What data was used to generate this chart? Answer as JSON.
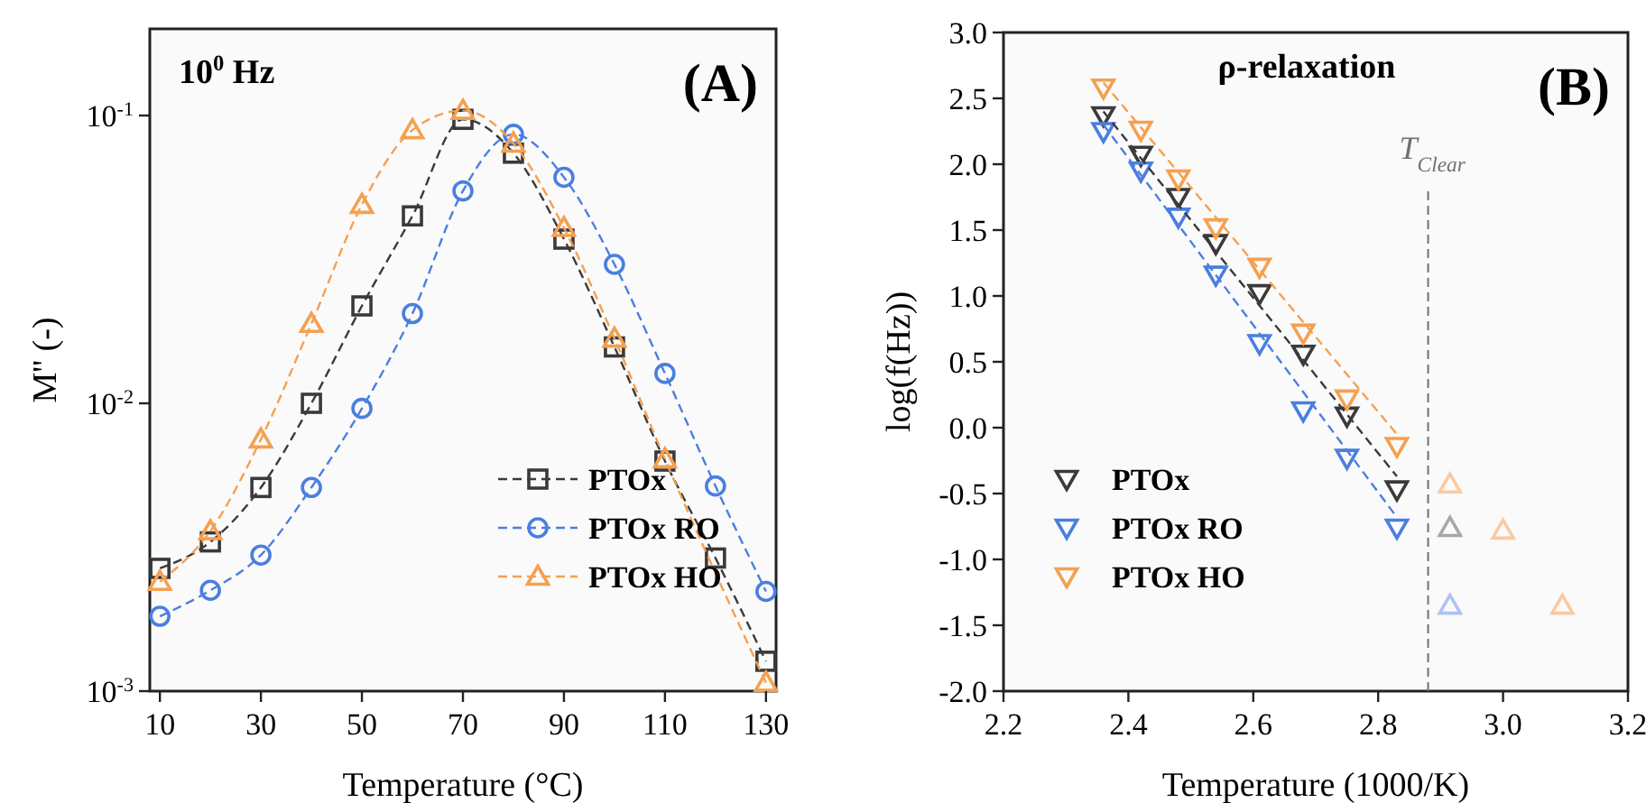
{
  "chart_data": [
    {
      "type": "line",
      "annotations": [
        "10$^{0}$ Hz",
        "(A)"
      ],
      "xlabel": "Temperature (°C)",
      "ylabel": "M'' (-)",
      "log": "y",
      "xlim": [
        8,
        132
      ],
      "xticks": [
        10,
        30,
        50,
        70,
        90,
        110,
        130
      ],
      "ylim": [
        0.001,
        0.2
      ],
      "yticks": [
        {
          "value": 0.001,
          "label": "10$^{-3}$"
        },
        {
          "value": 0.01,
          "label": "10$^{-2}$"
        },
        {
          "value": 0.1,
          "label": "10$^{-1}$"
        }
      ],
      "grid": false,
      "legend": "bottom right",
      "line_style": "dashed",
      "x": [
        10,
        20,
        30,
        40,
        50,
        60,
        70,
        80,
        90,
        100,
        110,
        120,
        130
      ],
      "series": [
        {
          "name": "PTOx",
          "color": "#3a3a3a",
          "marker": "square",
          "values": [
            0.00267,
            0.0033,
            0.0051,
            0.01,
            0.0218,
            0.0448,
            0.097,
            0.074,
            0.0372,
            0.0157,
            0.0063,
            0.0029,
            0.00127
          ]
        },
        {
          "name": "PTOx RO",
          "color": "#4a7fe0",
          "marker": "circle",
          "values": [
            0.00182,
            0.00224,
            0.00297,
            0.0051,
            0.0096,
            0.0205,
            0.0547,
            0.086,
            0.061,
            0.0304,
            0.0127,
            0.00516,
            0.00222
          ]
        },
        {
          "name": "PTOx HO",
          "color": "#f5a050",
          "marker": "triangle",
          "values": [
            0.0024,
            0.0036,
            0.0075,
            0.0189,
            0.049,
            0.089,
            0.104,
            0.08,
            0.0407,
            0.0168,
            0.0064,
            null,
            0.00107
          ]
        }
      ]
    },
    {
      "type": "scatter",
      "title": "ρ-relaxation",
      "annotations": [
        "(B)"
      ],
      "xlabel": "Temperature (1000/K)",
      "ylabel": "log(f(Hz))",
      "xlim": [
        2.2,
        3.2
      ],
      "xticks": [
        2.2,
        2.4,
        2.6,
        2.8,
        {
          "value": 3,
          "label": "3.0"
        },
        3.2
      ],
      "ylim": [
        -2,
        3
      ],
      "yticks": [
        {
          "value": 3,
          "label": "3.0"
        },
        2.5,
        {
          "value": 2,
          "label": "2.0"
        },
        1.5,
        {
          "value": 1,
          "label": "1.0"
        },
        0.5,
        {
          "value": 0,
          "label": "0.0"
        },
        -0.5,
        {
          "value": -1,
          "label": "-1.0"
        },
        -1.5,
        {
          "value": -2,
          "label": "-2.0"
        }
      ],
      "grid": false,
      "legend": "bottom left",
      "x": [
        2.36,
        2.42,
        2.48,
        2.54,
        2.61,
        2.68,
        2.75,
        2.83
      ],
      "ref_lines": [
        {
          "axis": "x",
          "value": 2.88,
          "label": "T$_{Clear}$",
          "color": "#707070",
          "line_style": "dashed"
        }
      ],
      "series": [
        {
          "name": "PTOx",
          "color": "#3a3a3a",
          "marker": "triangle-down",
          "values": [
            2.37,
            2.07,
            1.75,
            1.4,
            1.02,
            0.56,
            0.09,
            -0.47
          ]
        },
        {
          "name": "PTOx RO",
          "color": "#4a7fe0",
          "marker": "triangle-down",
          "values": [
            2.25,
            1.95,
            1.6,
            1.16,
            0.64,
            0.13,
            -0.23,
            -0.76
          ]
        },
        {
          "name": "PTOx HO",
          "color": "#f5a050",
          "marker": "triangle-down",
          "values": [
            2.58,
            2.26,
            1.89,
            1.52,
            1.22,
            0.72,
            0.22,
            -0.14
          ]
        },
        {
          "type": "line",
          "color": "#3a3a3a",
          "line_style": "dashed",
          "marker": "none",
          "x": [
            2.36,
            2.83
          ],
          "values": [
            2.4,
            -0.37
          ]
        },
        {
          "type": "line",
          "color": "#4a7fe0",
          "line_style": "dashed",
          "marker": "none",
          "x": [
            2.36,
            2.83
          ],
          "values": [
            2.3,
            -0.68
          ]
        },
        {
          "type": "line",
          "color": "#f5a050",
          "line_style": "dashed",
          "marker": "none",
          "x": [
            2.36,
            2.83
          ],
          "values": [
            2.62,
            -0.05
          ]
        },
        {
          "color": "#a8a8a8",
          "marker": "triangle",
          "x": [
            2.915
          ],
          "values": [
            -0.76
          ]
        },
        {
          "color": "#aec3f2",
          "marker": "triangle",
          "x": [
            2.915
          ],
          "values": [
            -1.35
          ]
        },
        {
          "color": "#f9caa2",
          "marker": "triangle",
          "x": [
            2.915,
            3.0,
            3.095
          ],
          "values": [
            -0.43,
            -0.78,
            -1.35
          ]
        }
      ]
    }
  ]
}
